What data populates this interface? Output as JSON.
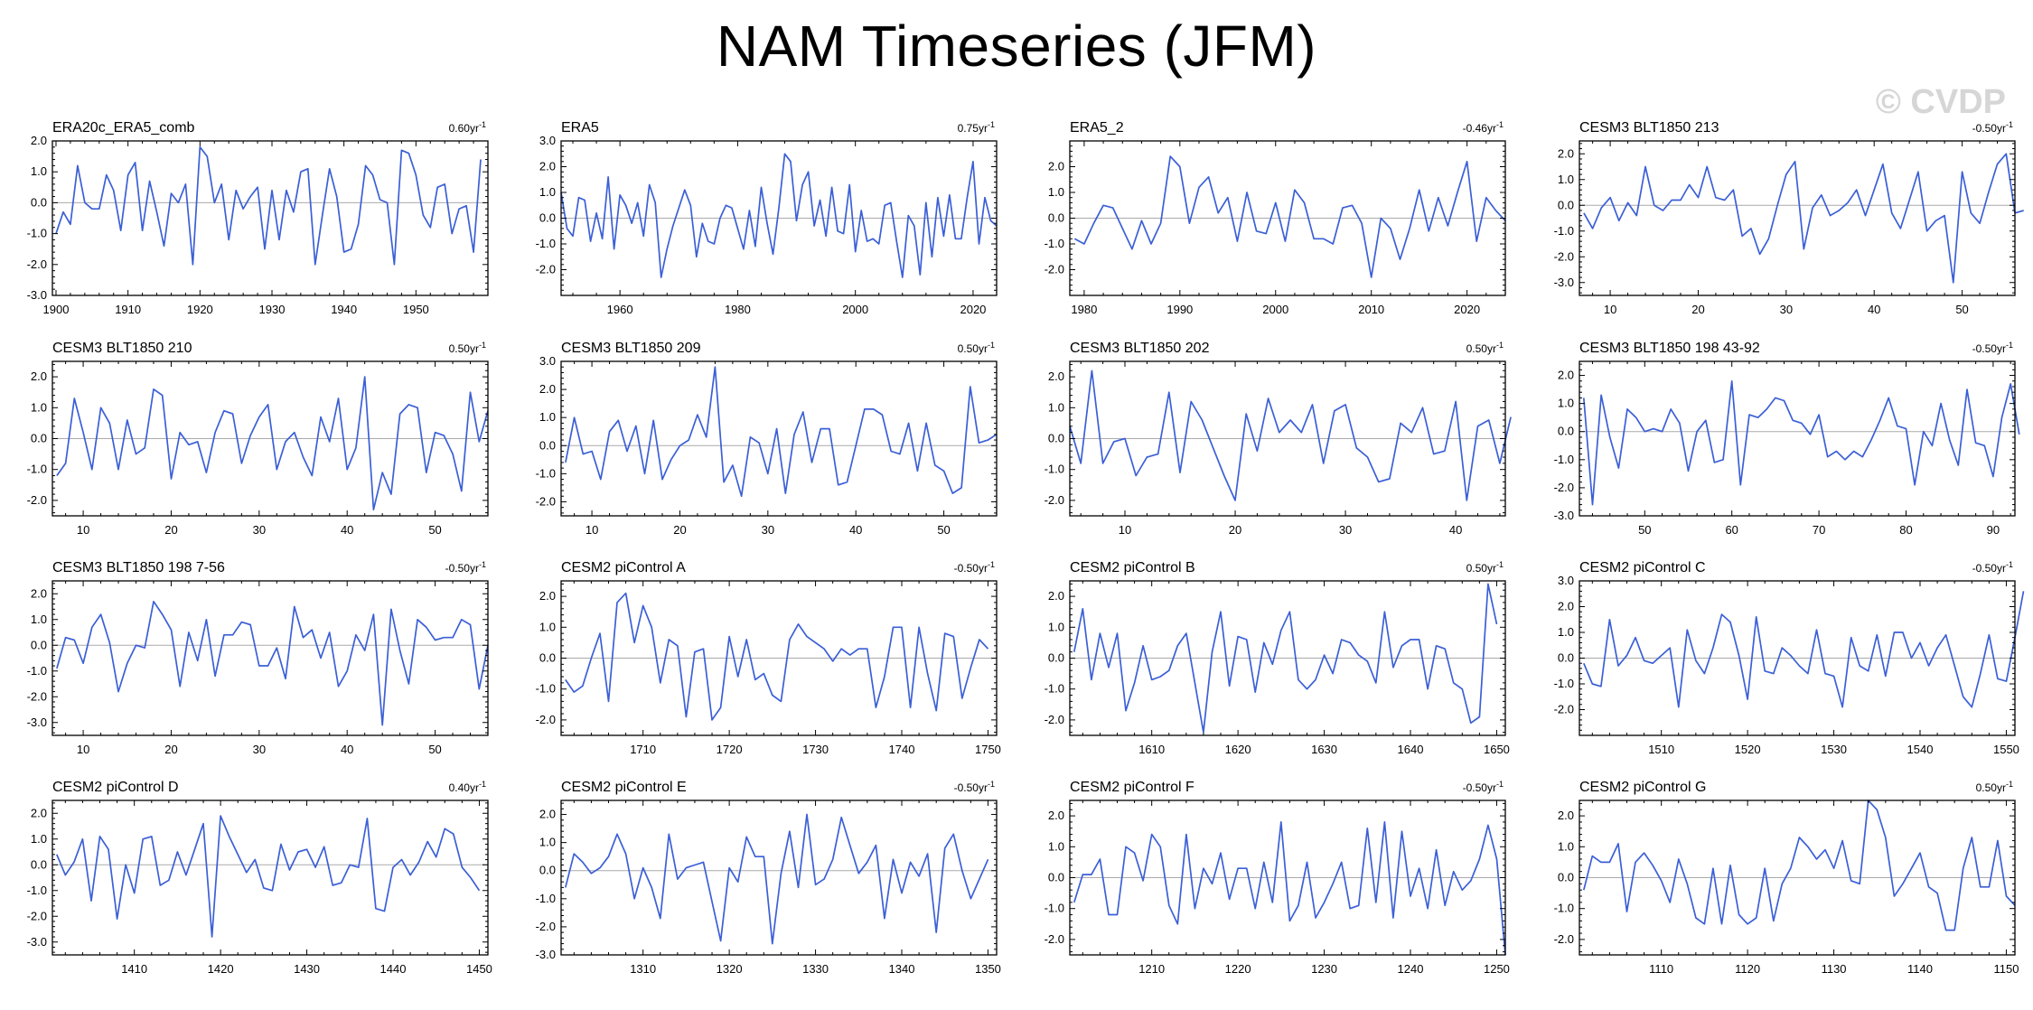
{
  "page": {
    "title": "NAM Timeseries (JFM)",
    "watermark": "© CVDP"
  },
  "chart_data": [
    {
      "type": "line",
      "title": "ERA20c_ERA5_comb",
      "trend": "0.60yr",
      "trend_exp": "-1",
      "x_start": 1900,
      "xlim": [
        1899.5,
        1960
      ],
      "xticks": [
        1900,
        1910,
        1920,
        1930,
        1940,
        1950
      ],
      "ylim": [
        -3,
        2
      ],
      "yticks": [
        -3,
        -2,
        -1,
        0,
        1,
        2
      ],
      "values": [
        -1.0,
        -0.3,
        -0.7,
        1.2,
        0.0,
        -0.2,
        -0.2,
        0.9,
        0.4,
        -0.9,
        0.9,
        1.3,
        -0.9,
        0.7,
        -0.3,
        -1.4,
        0.3,
        0.0,
        0.6,
        -2.0,
        1.8,
        1.5,
        0.0,
        0.6,
        -1.2,
        0.4,
        -0.2,
        0.2,
        0.5,
        -1.5,
        0.4,
        -1.2,
        0.4,
        -0.3,
        1.0,
        1.1,
        -2.0,
        -0.4,
        1.1,
        0.2,
        -1.6,
        -1.5,
        -0.7,
        1.2,
        0.9,
        0.1,
        0.0,
        -2.0,
        1.7,
        1.6,
        0.9,
        -0.4,
        -0.8,
        0.5,
        0.6,
        -1.0,
        -0.2,
        -0.1,
        -1.6,
        1.4
      ]
    },
    {
      "type": "line",
      "title": "ERA5",
      "trend": "0.75yr",
      "trend_exp": "-1",
      "x_start": 1950,
      "xlim": [
        1950,
        2024
      ],
      "xticks": [
        1960,
        1980,
        2000,
        2020
      ],
      "ylim": [
        -3,
        3
      ],
      "yticks": [
        -2,
        -1,
        0,
        1,
        2,
        3
      ],
      "values": [
        1.0,
        -0.4,
        -0.7,
        0.8,
        0.7,
        -0.9,
        0.2,
        -0.8,
        1.6,
        -1.2,
        0.9,
        0.5,
        -0.2,
        0.6,
        -0.7,
        1.3,
        0.6,
        -2.3,
        -1.2,
        -0.3,
        0.4,
        1.1,
        0.5,
        -1.5,
        -0.2,
        -0.9,
        -1.0,
        0.0,
        0.5,
        0.4,
        -0.4,
        -1.2,
        0.3,
        -1.1,
        1.2,
        -0.2,
        -1.4,
        0.4,
        2.5,
        2.2,
        -0.1,
        1.3,
        1.8,
        -0.3,
        0.7,
        -0.7,
        1.2,
        -0.5,
        -0.6,
        1.3,
        -1.3,
        0.3,
        -0.9,
        -0.8,
        -1.0,
        0.5,
        0.6,
        -0.9,
        -2.3,
        0.1,
        -0.3,
        -2.2,
        0.6,
        -1.5,
        0.8,
        -0.7,
        0.9,
        -0.8,
        -0.8,
        0.8,
        2.2,
        -1.0,
        0.8,
        -0.1,
        -0.3
      ]
    },
    {
      "type": "line",
      "title": "ERA5_2",
      "trend": "-0.46yr",
      "trend_exp": "-1",
      "x_start": 1979,
      "xlim": [
        1978.5,
        2024
      ],
      "xticks": [
        1980,
        1990,
        2000,
        2010,
        2020
      ],
      "ylim": [
        -3,
        3
      ],
      "yticks": [
        -2,
        -1,
        0,
        1,
        2
      ],
      "values": [
        -0.8,
        -1.0,
        -0.2,
        0.5,
        0.4,
        -0.4,
        -1.2,
        -0.1,
        -1.0,
        -0.2,
        2.4,
        2.0,
        -0.2,
        1.2,
        1.6,
        0.2,
        0.8,
        -0.9,
        1.0,
        -0.5,
        -0.6,
        0.6,
        -0.9,
        1.1,
        0.6,
        -0.8,
        -0.8,
        -1.0,
        0.4,
        0.5,
        -0.2,
        -2.3,
        0.0,
        -0.4,
        -1.6,
        -0.4,
        1.1,
        -0.5,
        0.8,
        -0.3,
        1.0,
        2.2,
        -0.9,
        0.8,
        0.3,
        -0.1
      ]
    },
    {
      "type": "line",
      "title": "CESM3 BLT1850 213",
      "trend": "-0.50yr",
      "trend_exp": "-1",
      "x_start": 7,
      "xlim": [
        6.5,
        56
      ],
      "xticks": [
        10,
        20,
        30,
        40,
        50
      ],
      "ylim": [
        -3.5,
        2.5
      ],
      "yticks": [
        -3,
        -2,
        -1,
        0,
        1,
        2
      ],
      "values": [
        -0.3,
        -0.9,
        -0.1,
        0.3,
        -0.6,
        0.1,
        -0.4,
        1.5,
        0.0,
        -0.2,
        0.2,
        0.2,
        0.8,
        0.3,
        1.5,
        0.3,
        0.2,
        0.6,
        -1.2,
        -0.9,
        -1.9,
        -1.3,
        0.0,
        1.2,
        1.7,
        -1.7,
        -0.1,
        0.4,
        -0.4,
        -0.2,
        0.1,
        0.6,
        -0.4,
        0.6,
        1.6,
        -0.3,
        -0.9,
        0.2,
        1.3,
        -1.0,
        -0.6,
        -0.4,
        -3.0,
        1.3,
        -0.3,
        -0.7,
        0.5,
        1.6,
        2.0,
        -0.3,
        -0.2
      ]
    },
    {
      "type": "line",
      "title": "CESM3 BLT1850 210",
      "trend": "0.50yr",
      "trend_exp": "-1",
      "x_start": 7,
      "xlim": [
        6.5,
        56
      ],
      "xticks": [
        10,
        20,
        30,
        40,
        50
      ],
      "ylim": [
        -2.5,
        2.5
      ],
      "yticks": [
        -2,
        -1,
        0,
        1,
        2
      ],
      "values": [
        -1.2,
        -0.8,
        1.3,
        0.2,
        -1.0,
        1.0,
        0.5,
        -1.0,
        0.6,
        -0.5,
        -0.3,
        1.6,
        1.4,
        -1.3,
        0.2,
        -0.2,
        -0.1,
        -1.1,
        0.2,
        0.9,
        0.8,
        -0.8,
        0.1,
        0.7,
        1.1,
        -1.0,
        -0.1,
        0.2,
        -0.6,
        -1.2,
        0.7,
        -0.1,
        1.3,
        -1.0,
        -0.3,
        2.0,
        -2.3,
        -1.1,
        -1.8,
        0.8,
        1.1,
        1.0,
        -1.1,
        0.2,
        0.1,
        -0.5,
        -1.7,
        1.5,
        -0.1,
        0.9
      ]
    },
    {
      "type": "line",
      "title": "CESM3 BLT1850 209",
      "trend": "0.50yr",
      "trend_exp": "-1",
      "x_start": 7,
      "xlim": [
        6.5,
        56
      ],
      "xticks": [
        10,
        20,
        30,
        40,
        50
      ],
      "ylim": [
        -2.5,
        3
      ],
      "yticks": [
        -2,
        -1,
        0,
        1,
        2,
        3
      ],
      "values": [
        -0.6,
        1.0,
        -0.3,
        -0.2,
        -1.2,
        0.5,
        0.9,
        -0.2,
        0.7,
        -1.0,
        0.9,
        -1.2,
        -0.5,
        0.0,
        0.2,
        1.1,
        0.3,
        2.8,
        -1.3,
        -0.7,
        -1.8,
        0.3,
        0.1,
        -1.0,
        0.6,
        -1.7,
        0.4,
        1.2,
        -0.6,
        0.6,
        0.6,
        -1.4,
        -1.3,
        0.0,
        1.3,
        1.3,
        1.1,
        -0.2,
        -0.3,
        0.8,
        -0.9,
        0.8,
        -0.7,
        -0.9,
        -1.7,
        -1.5,
        2.1,
        0.1,
        0.2,
        0.4
      ]
    },
    {
      "type": "line",
      "title": "CESM3 BLT1850 202",
      "trend": "0.50yr",
      "trend_exp": "-1",
      "x_start": 5,
      "xlim": [
        5,
        44.5
      ],
      "xticks": [
        10,
        20,
        30,
        40
      ],
      "ylim": [
        -2.5,
        2.5
      ],
      "yticks": [
        -2,
        -1,
        0,
        1,
        2
      ],
      "values": [
        0.4,
        -0.8,
        2.2,
        -0.8,
        -0.1,
        0.0,
        -1.2,
        -0.6,
        -0.5,
        1.5,
        -1.1,
        1.2,
        0.6,
        -0.3,
        -1.2,
        -2.0,
        0.8,
        -0.4,
        1.3,
        0.2,
        0.6,
        0.2,
        1.1,
        -0.8,
        0.9,
        1.1,
        -0.3,
        -0.6,
        -1.4,
        -1.3,
        0.5,
        0.2,
        1.0,
        -0.5,
        -0.4,
        1.2,
        -2.0,
        0.4,
        0.6,
        -0.8,
        0.7
      ]
    },
    {
      "type": "line",
      "title": "CESM3 BLT1850 198 43-92",
      "trend": "-0.50yr",
      "trend_exp": "-1",
      "x_start": 43,
      "xlim": [
        42.5,
        92.5
      ],
      "xticks": [
        50,
        60,
        70,
        80,
        90
      ],
      "ylim": [
        -3,
        2.5
      ],
      "yticks": [
        -3,
        -2,
        -1,
        0,
        1,
        2
      ],
      "values": [
        1.2,
        -2.6,
        1.3,
        -0.2,
        -1.3,
        0.8,
        0.5,
        0.0,
        0.1,
        0.0,
        0.8,
        0.3,
        -1.4,
        0.0,
        0.4,
        -1.1,
        -1.0,
        1.8,
        -1.9,
        0.6,
        0.5,
        0.8,
        1.2,
        1.1,
        0.4,
        0.3,
        -0.1,
        0.6,
        -0.9,
        -0.7,
        -1.0,
        -0.7,
        -0.9,
        -0.3,
        0.4,
        1.2,
        0.2,
        0.1,
        -1.9,
        0.0,
        -0.5,
        1.0,
        -0.3,
        -1.2,
        1.5,
        -0.4,
        -0.5,
        -1.6,
        0.5,
        1.7,
        -0.1
      ]
    },
    {
      "type": "line",
      "title": "CESM3 BLT1850 198 7-56",
      "trend": "-0.50yr",
      "trend_exp": "-1",
      "x_start": 7,
      "xlim": [
        6.5,
        56
      ],
      "xticks": [
        10,
        20,
        30,
        40,
        50
      ],
      "ylim": [
        -3.5,
        2.5
      ],
      "yticks": [
        -3,
        -2,
        -1,
        0,
        1,
        2
      ],
      "values": [
        -0.9,
        0.3,
        0.2,
        -0.7,
        0.7,
        1.2,
        0.1,
        -1.8,
        -0.7,
        0.0,
        -0.1,
        1.7,
        1.2,
        0.6,
        -1.6,
        0.5,
        -0.6,
        1.0,
        -1.2,
        0.4,
        0.4,
        0.9,
        0.8,
        -0.8,
        -0.8,
        -0.1,
        -1.3,
        1.5,
        0.3,
        0.6,
        -0.5,
        0.5,
        -1.6,
        -1.0,
        0.4,
        -0.2,
        1.2,
        -3.1,
        1.4,
        -0.2,
        -1.5,
        1.0,
        0.7,
        0.2,
        0.3,
        0.3,
        1.0,
        0.8,
        -1.7,
        0.0
      ]
    },
    {
      "type": "line",
      "title": "CESM2 piControl A",
      "trend": "-0.50yr",
      "trend_exp": "-1",
      "x_start": 1701,
      "xlim": [
        1700.5,
        1751
      ],
      "xticks": [
        1710,
        1720,
        1730,
        1740,
        1750
      ],
      "ylim": [
        -2.5,
        2.5
      ],
      "yticks": [
        -2,
        -1,
        0,
        1,
        2
      ],
      "values": [
        -0.7,
        -1.1,
        -0.9,
        0.0,
        0.8,
        -1.4,
        1.8,
        2.1,
        0.5,
        1.7,
        1.0,
        -0.8,
        0.6,
        0.4,
        -1.9,
        0.2,
        0.3,
        -2.0,
        -1.6,
        0.7,
        -0.6,
        0.6,
        -0.7,
        -0.5,
        -1.2,
        -1.4,
        0.6,
        1.1,
        0.7,
        0.5,
        0.3,
        -0.1,
        0.3,
        0.1,
        0.3,
        0.3,
        -1.6,
        -0.6,
        1.0,
        1.0,
        -1.6,
        1.0,
        -0.5,
        -1.7,
        0.8,
        0.7,
        -1.3,
        -0.3,
        0.6,
        0.3
      ]
    },
    {
      "type": "line",
      "title": "CESM2 piControl B",
      "trend": "0.50yr",
      "trend_exp": "-1",
      "x_start": 1601,
      "xlim": [
        1600.5,
        1651
      ],
      "xticks": [
        1610,
        1620,
        1630,
        1640,
        1650
      ],
      "ylim": [
        -2.5,
        2.5
      ],
      "yticks": [
        -2,
        -1,
        0,
        1,
        2
      ],
      "values": [
        0.2,
        1.6,
        -0.7,
        0.8,
        -0.3,
        0.8,
        -1.7,
        -0.8,
        0.4,
        -0.7,
        -0.6,
        -0.4,
        0.4,
        0.8,
        -0.8,
        -2.4,
        0.2,
        1.5,
        -0.9,
        0.7,
        0.6,
        -1.1,
        0.5,
        -0.2,
        0.9,
        1.5,
        -0.7,
        -1.0,
        -0.7,
        0.1,
        -0.5,
        0.6,
        0.5,
        0.1,
        -0.1,
        -0.8,
        1.5,
        -0.3,
        0.4,
        0.6,
        0.6,
        -1.0,
        0.4,
        0.3,
        -0.8,
        -1.0,
        -2.1,
        -1.9,
        2.4,
        1.1
      ]
    },
    {
      "type": "line",
      "title": "CESM2 piControl C",
      "trend": "-0.50yr",
      "trend_exp": "-1",
      "x_start": 1501,
      "xlim": [
        1500.5,
        1551
      ],
      "xticks": [
        1510,
        1520,
        1530,
        1540,
        1550
      ],
      "ylim": [
        -3,
        3
      ],
      "yticks": [
        -2,
        -1,
        0,
        1,
        2,
        3
      ],
      "values": [
        -0.2,
        -1.0,
        -1.1,
        1.5,
        -0.3,
        0.1,
        0.8,
        -0.1,
        -0.2,
        0.1,
        0.4,
        -1.9,
        1.1,
        -0.1,
        -0.6,
        0.4,
        1.7,
        1.4,
        0.1,
        -1.6,
        1.6,
        -0.5,
        -0.6,
        0.4,
        0.1,
        -0.3,
        -0.6,
        1.1,
        -0.6,
        -0.7,
        -1.9,
        0.8,
        -0.3,
        -0.5,
        0.9,
        -0.7,
        1.0,
        1.0,
        0.0,
        0.6,
        -0.3,
        0.4,
        0.9,
        -0.3,
        -1.5,
        -1.9,
        -0.6,
        0.9,
        -0.8,
        -0.9,
        0.8,
        2.6
      ]
    },
    {
      "type": "line",
      "title": "CESM2 piControl D",
      "trend": "0.40yr",
      "trend_exp": "-1",
      "x_start": 1401,
      "xlim": [
        1400.5,
        1451
      ],
      "xticks": [
        1410,
        1420,
        1430,
        1440,
        1450
      ],
      "ylim": [
        -3.5,
        2.5
      ],
      "yticks": [
        -3,
        -2,
        -1,
        0,
        1,
        2
      ],
      "values": [
        0.4,
        -0.4,
        0.1,
        1.0,
        -1.4,
        1.1,
        0.6,
        -2.1,
        0.0,
        -1.1,
        1.0,
        1.1,
        -0.8,
        -0.6,
        0.5,
        -0.4,
        0.6,
        1.6,
        -2.8,
        1.9,
        1.1,
        0.4,
        -0.3,
        0.2,
        -0.9,
        -1.0,
        0.8,
        -0.2,
        0.5,
        0.6,
        -0.1,
        0.7,
        -0.8,
        -0.7,
        0.0,
        -0.1,
        1.8,
        -1.7,
        -1.8,
        -0.1,
        0.2,
        -0.4,
        0.1,
        0.9,
        0.3,
        1.4,
        1.2,
        -0.1,
        -0.5,
        -1.0
      ]
    },
    {
      "type": "line",
      "title": "CESM2 piControl E",
      "trend": "-0.50yr",
      "trend_exp": "-1",
      "x_start": 1301,
      "xlim": [
        1300.5,
        1351
      ],
      "xticks": [
        1310,
        1320,
        1330,
        1340,
        1350
      ],
      "ylim": [
        -3,
        2.5
      ],
      "yticks": [
        -3,
        -2,
        -1,
        0,
        1,
        2
      ],
      "values": [
        -0.6,
        0.6,
        0.3,
        -0.1,
        0.1,
        0.5,
        1.3,
        0.6,
        -1.0,
        0.1,
        -0.6,
        -1.7,
        1.3,
        -0.3,
        0.1,
        0.2,
        0.3,
        -1.1,
        -2.5,
        0.1,
        -0.4,
        1.2,
        0.5,
        0.5,
        -2.6,
        -0.1,
        1.4,
        -0.6,
        2.0,
        -0.5,
        -0.3,
        0.4,
        1.9,
        0.9,
        -0.1,
        0.3,
        0.9,
        -1.7,
        0.4,
        -0.8,
        0.3,
        -0.2,
        0.6,
        -2.2,
        0.8,
        1.3,
        0.0,
        -1.0,
        -0.3,
        0.4
      ]
    },
    {
      "type": "line",
      "title": "CESM2 piControl F",
      "trend": "-0.50yr",
      "trend_exp": "-1",
      "x_start": 1201,
      "xlim": [
        1200.5,
        1251
      ],
      "xticks": [
        1210,
        1220,
        1230,
        1240,
        1250
      ],
      "ylim": [
        -2.5,
        2.5
      ],
      "yticks": [
        -2,
        -1,
        0,
        1,
        2
      ],
      "values": [
        -0.8,
        0.1,
        0.1,
        0.6,
        -1.2,
        -1.2,
        1.0,
        0.8,
        -0.1,
        1.4,
        1.0,
        -0.9,
        -1.5,
        1.4,
        -1.0,
        0.3,
        -0.2,
        0.8,
        -0.7,
        0.3,
        0.3,
        -1.0,
        0.5,
        -0.8,
        1.8,
        -1.4,
        -0.9,
        0.5,
        -1.3,
        -0.8,
        -0.2,
        0.5,
        -1.0,
        -0.9,
        1.6,
        -0.8,
        1.8,
        -1.3,
        1.5,
        -0.6,
        0.3,
        -1.0,
        0.9,
        -0.9,
        0.2,
        -0.4,
        -0.1,
        0.6,
        1.7,
        0.6,
        -2.5
      ]
    },
    {
      "type": "line",
      "title": "CESM2 piControl G",
      "trend": "0.50yr",
      "trend_exp": "-1",
      "x_start": 1101,
      "xlim": [
        1100.5,
        1151
      ],
      "xticks": [
        1110,
        1120,
        1130,
        1140,
        1150
      ],
      "ylim": [
        -2.5,
        2.5
      ],
      "yticks": [
        -2,
        -1,
        0,
        1,
        2
      ],
      "values": [
        -0.4,
        0.7,
        0.5,
        0.5,
        1.1,
        -1.1,
        0.5,
        0.8,
        0.4,
        -0.1,
        -0.8,
        0.6,
        -0.2,
        -1.3,
        -1.5,
        0.3,
        -1.5,
        0.4,
        -1.2,
        -1.5,
        -1.3,
        0.3,
        -1.4,
        -0.2,
        0.3,
        1.3,
        1.0,
        0.6,
        0.9,
        0.3,
        1.2,
        -0.1,
        -0.2,
        2.5,
        2.2,
        1.3,
        -0.6,
        -0.2,
        0.3,
        0.8,
        -0.3,
        -0.5,
        -1.7,
        -1.7,
        0.3,
        1.3,
        -0.3,
        -0.3,
        1.2,
        -0.6,
        -0.9
      ]
    }
  ]
}
